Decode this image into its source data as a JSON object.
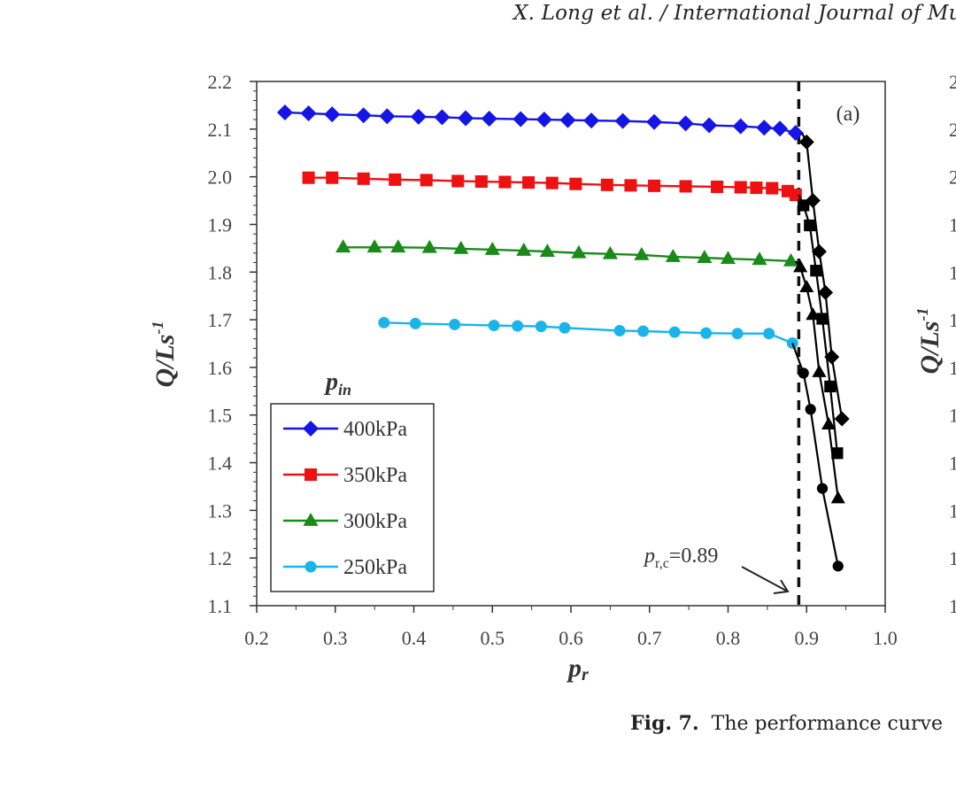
{
  "header": {
    "text": "X. Long et al. / International Journal of Mul"
  },
  "caption": {
    "label": "Fig. 7.",
    "text": "The performance curve"
  },
  "colors": {
    "s400": "#1515e6",
    "s350": "#ee1111",
    "s300": "#1a8a1a",
    "s250": "#1ab4ea",
    "drop": "#000000"
  },
  "chart_data": {
    "type": "line",
    "panel_label": "(a)",
    "xlabel": "p",
    "xlabel_sub": "r",
    "ylabel": "Q/Ls",
    "ylabel_sup": "-1",
    "xlim": [
      0.2,
      1.0
    ],
    "ylim": [
      1.1,
      2.2
    ],
    "x_ticks": [
      "0.2",
      "0.3",
      "0.4",
      "0.5",
      "0.6",
      "0.7",
      "0.8",
      "0.9",
      "1.0"
    ],
    "y_ticks": [
      "1.1",
      "1.2",
      "1.3",
      "1.4",
      "1.5",
      "1.6",
      "1.7",
      "1.8",
      "1.9",
      "2.0",
      "2.1",
      "2.2"
    ],
    "legend_title": "p",
    "legend_title_sub": "in",
    "critical_line": {
      "x": 0.89,
      "label_prefix": "p",
      "label_sub": "r,c",
      "label_suffix": "=0.89"
    },
    "series": [
      {
        "name": "400kPa",
        "marker": "diamond",
        "color_key": "s400",
        "x": [
          0.236,
          0.266,
          0.296,
          0.336,
          0.366,
          0.406,
          0.436,
          0.466,
          0.496,
          0.536,
          0.566,
          0.596,
          0.626,
          0.666,
          0.706,
          0.746,
          0.776,
          0.816,
          0.846,
          0.866,
          0.886
        ],
        "y": [
          2.135,
          2.133,
          2.131,
          2.129,
          2.127,
          2.126,
          2.125,
          2.123,
          2.122,
          2.121,
          2.12,
          2.119,
          2.118,
          2.117,
          2.115,
          2.112,
          2.108,
          2.106,
          2.103,
          2.101,
          2.092
        ],
        "drop_x": [
          0.894,
          0.9,
          0.908,
          0.916,
          0.924,
          0.932,
          0.945
        ],
        "drop_y": [
          2.092,
          2.073,
          1.95,
          1.843,
          1.757,
          1.622,
          1.492
        ]
      },
      {
        "name": "350kPa",
        "marker": "square",
        "color_key": "s350",
        "x": [
          0.266,
          0.296,
          0.336,
          0.376,
          0.416,
          0.456,
          0.486,
          0.516,
          0.546,
          0.576,
          0.606,
          0.646,
          0.676,
          0.706,
          0.746,
          0.786,
          0.816,
          0.836,
          0.856,
          0.876,
          0.886
        ],
        "y": [
          1.998,
          1.998,
          1.996,
          1.994,
          1.993,
          1.991,
          1.99,
          1.989,
          1.988,
          1.987,
          1.985,
          1.983,
          1.982,
          1.981,
          1.98,
          1.979,
          1.978,
          1.977,
          1.976,
          1.97,
          1.962
        ],
        "drop_x": [
          0.89,
          0.896,
          0.904,
          0.912,
          0.92,
          0.93,
          0.939
        ],
        "drop_y": [
          1.962,
          1.94,
          1.898,
          1.803,
          1.702,
          1.56,
          1.42
        ]
      },
      {
        "name": "300kPa",
        "marker": "triangle",
        "color_key": "s300",
        "x": [
          0.31,
          0.35,
          0.38,
          0.42,
          0.46,
          0.5,
          0.54,
          0.57,
          0.61,
          0.65,
          0.69,
          0.73,
          0.77,
          0.8,
          0.84,
          0.88
        ],
        "y": [
          1.852,
          1.852,
          1.852,
          1.851,
          1.849,
          1.847,
          1.845,
          1.843,
          1.84,
          1.838,
          1.836,
          1.832,
          1.83,
          1.828,
          1.826,
          1.823
        ],
        "drop_x": [
          0.886,
          0.892,
          0.9,
          0.908,
          0.916,
          0.928,
          0.94
        ],
        "drop_y": [
          1.823,
          1.81,
          1.768,
          1.71,
          1.59,
          1.48,
          1.325
        ]
      },
      {
        "name": "250kPa",
        "marker": "circle",
        "color_key": "s250",
        "x": [
          0.362,
          0.402,
          0.452,
          0.502,
          0.532,
          0.562,
          0.592,
          0.662,
          0.692,
          0.732,
          0.772,
          0.812,
          0.852,
          0.882
        ],
        "y": [
          1.694,
          1.692,
          1.69,
          1.688,
          1.687,
          1.686,
          1.683,
          1.677,
          1.676,
          1.674,
          1.672,
          1.671,
          1.671,
          1.651
        ],
        "drop_x": [
          0.882,
          0.896,
          0.905,
          0.92,
          0.94
        ],
        "drop_y": [
          1.651,
          1.588,
          1.512,
          1.346,
          1.183
        ]
      }
    ]
  }
}
